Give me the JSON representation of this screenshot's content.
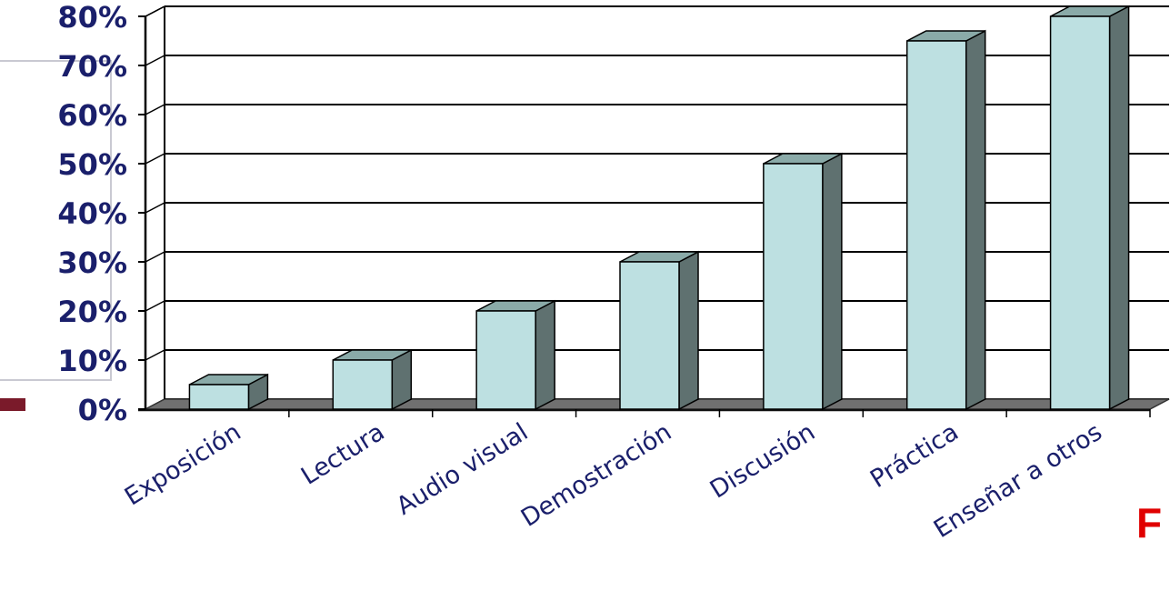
{
  "chart_data": {
    "type": "bar",
    "categories": [
      "Exposición",
      "Lectura",
      "Audio visual",
      "Demostración",
      "Discusión",
      "Práctica",
      "Enseñar a otros"
    ],
    "values": [
      5,
      10,
      20,
      30,
      50,
      75,
      80
    ],
    "y_tick_labels": [
      "0%",
      "10%",
      "20%",
      "30%",
      "40%",
      "50%",
      "60%",
      "70%",
      "80%"
    ],
    "ylim": [
      0,
      80
    ],
    "y_unit": "%",
    "grid": true,
    "three_d": true,
    "colors": {
      "bar_front": "#bde0e1",
      "bar_top": "#8aaaa8",
      "bar_side": "#5f7170",
      "floor": "#707070",
      "axis_text": "#1a1f6b"
    }
  },
  "decor": {
    "corner_letter": "F",
    "corner_letter_color": "#e00000",
    "accent_color": "#7a1a2a"
  }
}
